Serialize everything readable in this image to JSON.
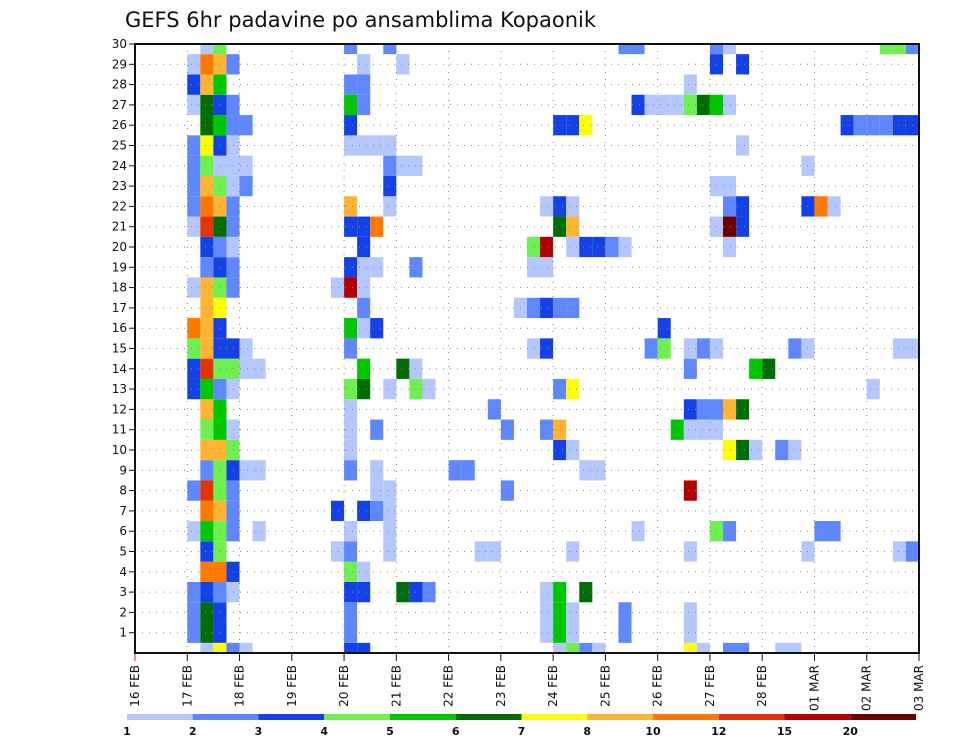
{
  "chart_data": {
    "type": "heatmap",
    "title": "GEFS 6hr padavine po ansamblima Kopaonik",
    "xlabel": "",
    "ylabel": "",
    "y_ticks": [
      "1",
      "2",
      "3",
      "4",
      "5",
      "6",
      "7",
      "8",
      "9",
      "10",
      "11",
      "12",
      "13",
      "14",
      "15",
      "16",
      "17",
      "18",
      "19",
      "20",
      "21",
      "22",
      "23",
      "24",
      "25",
      "26",
      "27",
      "28",
      "29",
      "30"
    ],
    "y_range": [
      0,
      30
    ],
    "x_ticks": [
      "16 FEB",
      "17 FEB",
      "18 FEB",
      "19 FEB",
      "20 FEB",
      "21 FEB",
      "22 FEB",
      "23 FEB",
      "24 FEB",
      "25 FEB",
      "26 FEB",
      "27 FEB",
      "28 FEB",
      "01 MAR",
      "02 MAR",
      "03 MAR"
    ],
    "x_steps_per_day": 4,
    "x_total_steps": 60,
    "grid": "dotted",
    "colorbar": {
      "labels": [
        "1",
        "2",
        "3",
        "4",
        "5",
        "6",
        "7",
        "8",
        "10",
        "12",
        "15",
        "20"
      ],
      "colors": [
        "#b4c8ff",
        "#5f87ff",
        "#1441e6",
        "#6ef050",
        "#00c800",
        "#006e00",
        "#ffff00",
        "#ffb432",
        "#ff7800",
        "#e63200",
        "#b40000",
        "#6e0000"
      ],
      "placement": "bottom"
    },
    "cells_note": "rows: member index 0-30; each cell [step_index_from_16FEB_00z, color_level_index]",
    "rows": {
      "30": [
        [
          5,
          0
        ],
        [
          6,
          3
        ],
        [
          16,
          1
        ],
        [
          19,
          1
        ],
        [
          37,
          1
        ],
        [
          38,
          1
        ],
        [
          44,
          1
        ],
        [
          45,
          0
        ],
        [
          57,
          3
        ],
        [
          58,
          3
        ],
        [
          59,
          1
        ]
      ],
      "29": [
        [
          4,
          0
        ],
        [
          5,
          8
        ],
        [
          6,
          7
        ],
        [
          7,
          1
        ],
        [
          17,
          0
        ],
        [
          20,
          0
        ],
        [
          44,
          2
        ],
        [
          46,
          2
        ]
      ],
      "28": [
        [
          4,
          2
        ],
        [
          5,
          7
        ],
        [
          6,
          4
        ],
        [
          16,
          1
        ],
        [
          17,
          1
        ],
        [
          42,
          0
        ]
      ],
      "27": [
        [
          4,
          0
        ],
        [
          5,
          5
        ],
        [
          6,
          2
        ],
        [
          7,
          1
        ],
        [
          16,
          4
        ],
        [
          17,
          1
        ],
        [
          38,
          2
        ],
        [
          39,
          0
        ],
        [
          40,
          0
        ],
        [
          41,
          0
        ],
        [
          42,
          3
        ],
        [
          43,
          5
        ],
        [
          44,
          4
        ],
        [
          45,
          0
        ]
      ],
      "26": [
        [
          5,
          5
        ],
        [
          6,
          4
        ],
        [
          7,
          1
        ],
        [
          8,
          1
        ],
        [
          16,
          2
        ],
        [
          32,
          2
        ],
        [
          33,
          2
        ],
        [
          34,
          6
        ],
        [
          54,
          2
        ],
        [
          55,
          1
        ],
        [
          56,
          1
        ],
        [
          57,
          1
        ],
        [
          58,
          2
        ],
        [
          59,
          2
        ]
      ],
      "25": [
        [
          4,
          1
        ],
        [
          5,
          6
        ],
        [
          6,
          2
        ],
        [
          7,
          0
        ],
        [
          16,
          0
        ],
        [
          17,
          0
        ],
        [
          18,
          0
        ],
        [
          19,
          0
        ],
        [
          46,
          0
        ]
      ],
      "24": [
        [
          4,
          1
        ],
        [
          5,
          3
        ],
        [
          6,
          0
        ],
        [
          7,
          0
        ],
        [
          8,
          0
        ],
        [
          19,
          1
        ],
        [
          20,
          0
        ],
        [
          21,
          0
        ],
        [
          51,
          0
        ]
      ],
      "23": [
        [
          4,
          1
        ],
        [
          5,
          7
        ],
        [
          6,
          3
        ],
        [
          7,
          0
        ],
        [
          8,
          1
        ],
        [
          19,
          2
        ],
        [
          44,
          0
        ],
        [
          45,
          0
        ]
      ],
      "22": [
        [
          4,
          1
        ],
        [
          5,
          8
        ],
        [
          6,
          7
        ],
        [
          7,
          1
        ],
        [
          16,
          7
        ],
        [
          19,
          0
        ],
        [
          31,
          0
        ],
        [
          32,
          2
        ],
        [
          33,
          0
        ],
        [
          45,
          1
        ],
        [
          46,
          2
        ],
        [
          51,
          2
        ],
        [
          52,
          8
        ],
        [
          53,
          0
        ]
      ],
      "21": [
        [
          4,
          0
        ],
        [
          5,
          9
        ],
        [
          6,
          5
        ],
        [
          7,
          1
        ],
        [
          16,
          2
        ],
        [
          17,
          2
        ],
        [
          18,
          8
        ],
        [
          32,
          5
        ],
        [
          33,
          7
        ],
        [
          44,
          0
        ],
        [
          45,
          11
        ],
        [
          46,
          2
        ]
      ],
      "20": [
        [
          5,
          2
        ],
        [
          6,
          1
        ],
        [
          7,
          0
        ],
        [
          17,
          2
        ],
        [
          30,
          3
        ],
        [
          31,
          10
        ],
        [
          33,
          0
        ],
        [
          34,
          2
        ],
        [
          35,
          2
        ],
        [
          36,
          1
        ],
        [
          37,
          0
        ],
        [
          45,
          0
        ]
      ],
      "19": [
        [
          5,
          1
        ],
        [
          6,
          2
        ],
        [
          7,
          1
        ],
        [
          16,
          2
        ],
        [
          17,
          0
        ],
        [
          18,
          0
        ],
        [
          21,
          1
        ],
        [
          30,
          0
        ],
        [
          31,
          0
        ]
      ],
      "18": [
        [
          4,
          0
        ],
        [
          5,
          7
        ],
        [
          6,
          3
        ],
        [
          7,
          1
        ],
        [
          15,
          0
        ],
        [
          16,
          10
        ],
        [
          17,
          0
        ]
      ],
      "17": [
        [
          5,
          7
        ],
        [
          6,
          6
        ],
        [
          17,
          1
        ],
        [
          29,
          0
        ],
        [
          30,
          1
        ],
        [
          31,
          2
        ],
        [
          32,
          1
        ],
        [
          33,
          1
        ]
      ],
      "16": [
        [
          4,
          8
        ],
        [
          5,
          7
        ],
        [
          6,
          2
        ],
        [
          16,
          4
        ],
        [
          17,
          0
        ],
        [
          18,
          2
        ],
        [
          40,
          2
        ]
      ],
      "15": [
        [
          4,
          3
        ],
        [
          5,
          7
        ],
        [
          6,
          2
        ],
        [
          7,
          2
        ],
        [
          8,
          0
        ],
        [
          16,
          1
        ],
        [
          30,
          0
        ],
        [
          31,
          2
        ],
        [
          39,
          1
        ],
        [
          40,
          3
        ],
        [
          42,
          0
        ],
        [
          43,
          1
        ],
        [
          44,
          0
        ],
        [
          50,
          1
        ],
        [
          51,
          0
        ],
        [
          58,
          0
        ],
        [
          59,
          0
        ]
      ],
      "14": [
        [
          4,
          2
        ],
        [
          5,
          9
        ],
        [
          6,
          3
        ],
        [
          7,
          3
        ],
        [
          8,
          0
        ],
        [
          9,
          0
        ],
        [
          17,
          4
        ],
        [
          20,
          5
        ],
        [
          21,
          0
        ],
        [
          42,
          1
        ],
        [
          47,
          4
        ],
        [
          48,
          5
        ]
      ],
      "13": [
        [
          4,
          2
        ],
        [
          5,
          4
        ],
        [
          6,
          1
        ],
        [
          7,
          0
        ],
        [
          16,
          3
        ],
        [
          17,
          5
        ],
        [
          19,
          0
        ],
        [
          21,
          3
        ],
        [
          22,
          0
        ],
        [
          32,
          1
        ],
        [
          33,
          6
        ],
        [
          56,
          0
        ]
      ],
      "12": [
        [
          5,
          7
        ],
        [
          6,
          4
        ],
        [
          16,
          0
        ],
        [
          27,
          1
        ],
        [
          42,
          2
        ],
        [
          43,
          1
        ],
        [
          44,
          1
        ],
        [
          45,
          7
        ],
        [
          46,
          5
        ]
      ],
      "11": [
        [
          5,
          3
        ],
        [
          6,
          4
        ],
        [
          7,
          0
        ],
        [
          16,
          0
        ],
        [
          18,
          1
        ],
        [
          28,
          1
        ],
        [
          31,
          1
        ],
        [
          32,
          7
        ],
        [
          41,
          4
        ],
        [
          42,
          0
        ],
        [
          43,
          0
        ],
        [
          44,
          0
        ]
      ],
      "10": [
        [
          5,
          7
        ],
        [
          6,
          7
        ],
        [
          7,
          3
        ],
        [
          16,
          0
        ],
        [
          32,
          2
        ],
        [
          33,
          0
        ],
        [
          45,
          6
        ],
        [
          46,
          5
        ],
        [
          47,
          0
        ],
        [
          49,
          1
        ],
        [
          50,
          0
        ]
      ],
      "9": [
        [
          5,
          1
        ],
        [
          6,
          3
        ],
        [
          7,
          2
        ],
        [
          8,
          0
        ],
        [
          9,
          0
        ],
        [
          16,
          1
        ],
        [
          18,
          0
        ],
        [
          24,
          1
        ],
        [
          25,
          1
        ],
        [
          34,
          0
        ],
        [
          35,
          0
        ]
      ],
      "8": [
        [
          4,
          1
        ],
        [
          5,
          9
        ],
        [
          6,
          3
        ],
        [
          7,
          1
        ],
        [
          18,
          0
        ],
        [
          19,
          0
        ],
        [
          28,
          1
        ],
        [
          42,
          10
        ]
      ],
      "7": [
        [
          5,
          8
        ],
        [
          6,
          7
        ],
        [
          7,
          1
        ],
        [
          15,
          2
        ],
        [
          17,
          2
        ],
        [
          18,
          1
        ],
        [
          19,
          0
        ]
      ],
      "6": [
        [
          4,
          0
        ],
        [
          5,
          4
        ],
        [
          6,
          3
        ],
        [
          7,
          1
        ],
        [
          9,
          0
        ],
        [
          16,
          0
        ],
        [
          19,
          0
        ],
        [
          38,
          0
        ],
        [
          44,
          3
        ],
        [
          45,
          1
        ],
        [
          52,
          1
        ],
        [
          53,
          1
        ]
      ],
      "5": [
        [
          5,
          2
        ],
        [
          6,
          3
        ],
        [
          15,
          0
        ],
        [
          16,
          1
        ],
        [
          19,
          0
        ],
        [
          26,
          0
        ],
        [
          27,
          0
        ],
        [
          33,
          0
        ],
        [
          42,
          0
        ],
        [
          51,
          0
        ],
        [
          58,
          0
        ],
        [
          59,
          1
        ]
      ],
      "4": [
        [
          5,
          8
        ],
        [
          6,
          8
        ],
        [
          7,
          2
        ],
        [
          16,
          3
        ],
        [
          17,
          0
        ]
      ],
      "3": [
        [
          4,
          1
        ],
        [
          5,
          2
        ],
        [
          6,
          1
        ],
        [
          7,
          0
        ],
        [
          16,
          2
        ],
        [
          17,
          2
        ],
        [
          20,
          5
        ],
        [
          21,
          2
        ],
        [
          22,
          1
        ],
        [
          31,
          0
        ],
        [
          32,
          4
        ],
        [
          34,
          5
        ]
      ],
      "2": [
        [
          4,
          1
        ],
        [
          5,
          5
        ],
        [
          6,
          2
        ],
        [
          16,
          1
        ],
        [
          31,
          0
        ],
        [
          32,
          4
        ],
        [
          33,
          0
        ],
        [
          37,
          1
        ],
        [
          42,
          0
        ]
      ],
      "1": [
        [
          4,
          1
        ],
        [
          5,
          5
        ],
        [
          6,
          2
        ],
        [
          16,
          1
        ],
        [
          31,
          0
        ],
        [
          32,
          4
        ],
        [
          33,
          0
        ],
        [
          37,
          1
        ],
        [
          42,
          0
        ]
      ],
      "0": [
        [
          5,
          0
        ],
        [
          6,
          6
        ],
        [
          7,
          1
        ],
        [
          8,
          0
        ],
        [
          16,
          2
        ],
        [
          17,
          2
        ],
        [
          32,
          0
        ],
        [
          33,
          3
        ],
        [
          34,
          1
        ],
        [
          35,
          0
        ],
        [
          42,
          6
        ],
        [
          43,
          0
        ],
        [
          45,
          1
        ],
        [
          46,
          1
        ],
        [
          49,
          0
        ],
        [
          50,
          0
        ]
      ]
    }
  }
}
